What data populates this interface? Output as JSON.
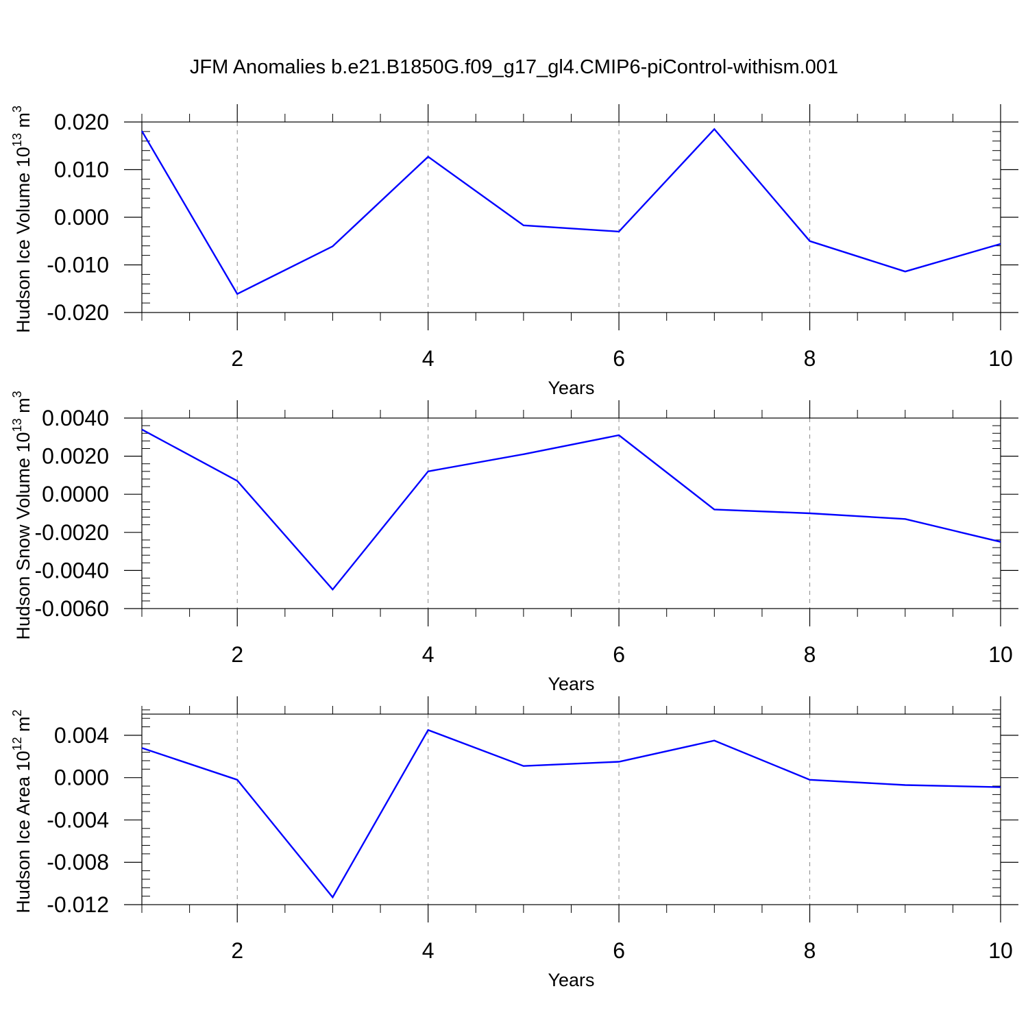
{
  "title": "JFM Anomalies b.e21.B1850G.f09_g17_gl4.CMIP6-piControl-withism.001",
  "colors": {
    "line": "#0000ff",
    "axis": "#000000",
    "grid": "#888888",
    "background": "#ffffff"
  },
  "chart_data": [
    {
      "type": "line",
      "ylabel": {
        "text": "Hudson Ice Volume 10",
        "exp": "13",
        "unit": " m",
        "unit_exp": "3"
      },
      "xlabel": "Years",
      "xlim": [
        1,
        10
      ],
      "ylim": [
        -0.02,
        0.02
      ],
      "xticks": [
        2,
        4,
        6,
        8,
        10
      ],
      "xtick_labels": [
        "2",
        "4",
        "6",
        "8",
        "10"
      ],
      "yticks": [
        -0.02,
        -0.01,
        0.0,
        0.01,
        0.02
      ],
      "ytick_labels": [
        "-0.020",
        "-0.010",
        "0.000",
        "0.010",
        "0.020"
      ],
      "grid": "vertical dashed at major x ticks",
      "x": [
        1,
        2,
        3,
        4,
        5,
        6,
        7,
        8,
        9,
        10
      ],
      "y": [
        0.0181,
        -0.0161,
        -0.0061,
        0.0127,
        -0.0017,
        -0.003,
        0.0185,
        -0.005,
        -0.0114,
        -0.0056
      ]
    },
    {
      "type": "line",
      "ylabel": {
        "text": "Hudson Snow Volume 10",
        "exp": "13",
        "unit": " m",
        "unit_exp": "3"
      },
      "xlabel": "Years",
      "xlim": [
        1,
        10
      ],
      "ylim": [
        -0.006,
        0.004
      ],
      "xticks": [
        2,
        4,
        6,
        8,
        10
      ],
      "xtick_labels": [
        "2",
        "4",
        "6",
        "8",
        "10"
      ],
      "yticks": [
        -0.006,
        -0.004,
        -0.002,
        0.0,
        0.002,
        0.004
      ],
      "ytick_labels": [
        "-0.0060",
        "-0.0040",
        "-0.0020",
        "0.0000",
        "0.0020",
        "0.0040"
      ],
      "grid": "vertical dashed at major x ticks",
      "x": [
        1,
        2,
        3,
        4,
        5,
        6,
        7,
        8,
        9,
        10
      ],
      "y": [
        0.0034,
        0.0007,
        -0.005,
        0.0012,
        0.0021,
        0.0031,
        -0.0008,
        -0.001,
        -0.0013,
        -0.0025
      ]
    },
    {
      "type": "line",
      "ylabel": {
        "text": "Hudson Ice Area 10",
        "exp": "12",
        "unit": " m",
        "unit_exp": "2"
      },
      "xlabel": "Years",
      "xlim": [
        1,
        10
      ],
      "ylim": [
        -0.012,
        0.006
      ],
      "xticks": [
        2,
        4,
        6,
        8,
        10
      ],
      "xtick_labels": [
        "2",
        "4",
        "6",
        "8",
        "10"
      ],
      "yticks": [
        -0.012,
        -0.008,
        -0.004,
        0.0,
        0.004
      ],
      "ytick_labels": [
        "-0.012",
        "-0.008",
        "-0.004",
        "0.000",
        "0.004"
      ],
      "grid": "vertical dashed at major x ticks",
      "x": [
        1,
        2,
        3,
        4,
        5,
        6,
        7,
        8,
        9,
        10
      ],
      "y": [
        0.0028,
        -0.0002,
        -0.0113,
        0.0045,
        0.0011,
        0.0015,
        0.0035,
        -0.0002,
        -0.0007,
        -0.0009
      ]
    }
  ]
}
